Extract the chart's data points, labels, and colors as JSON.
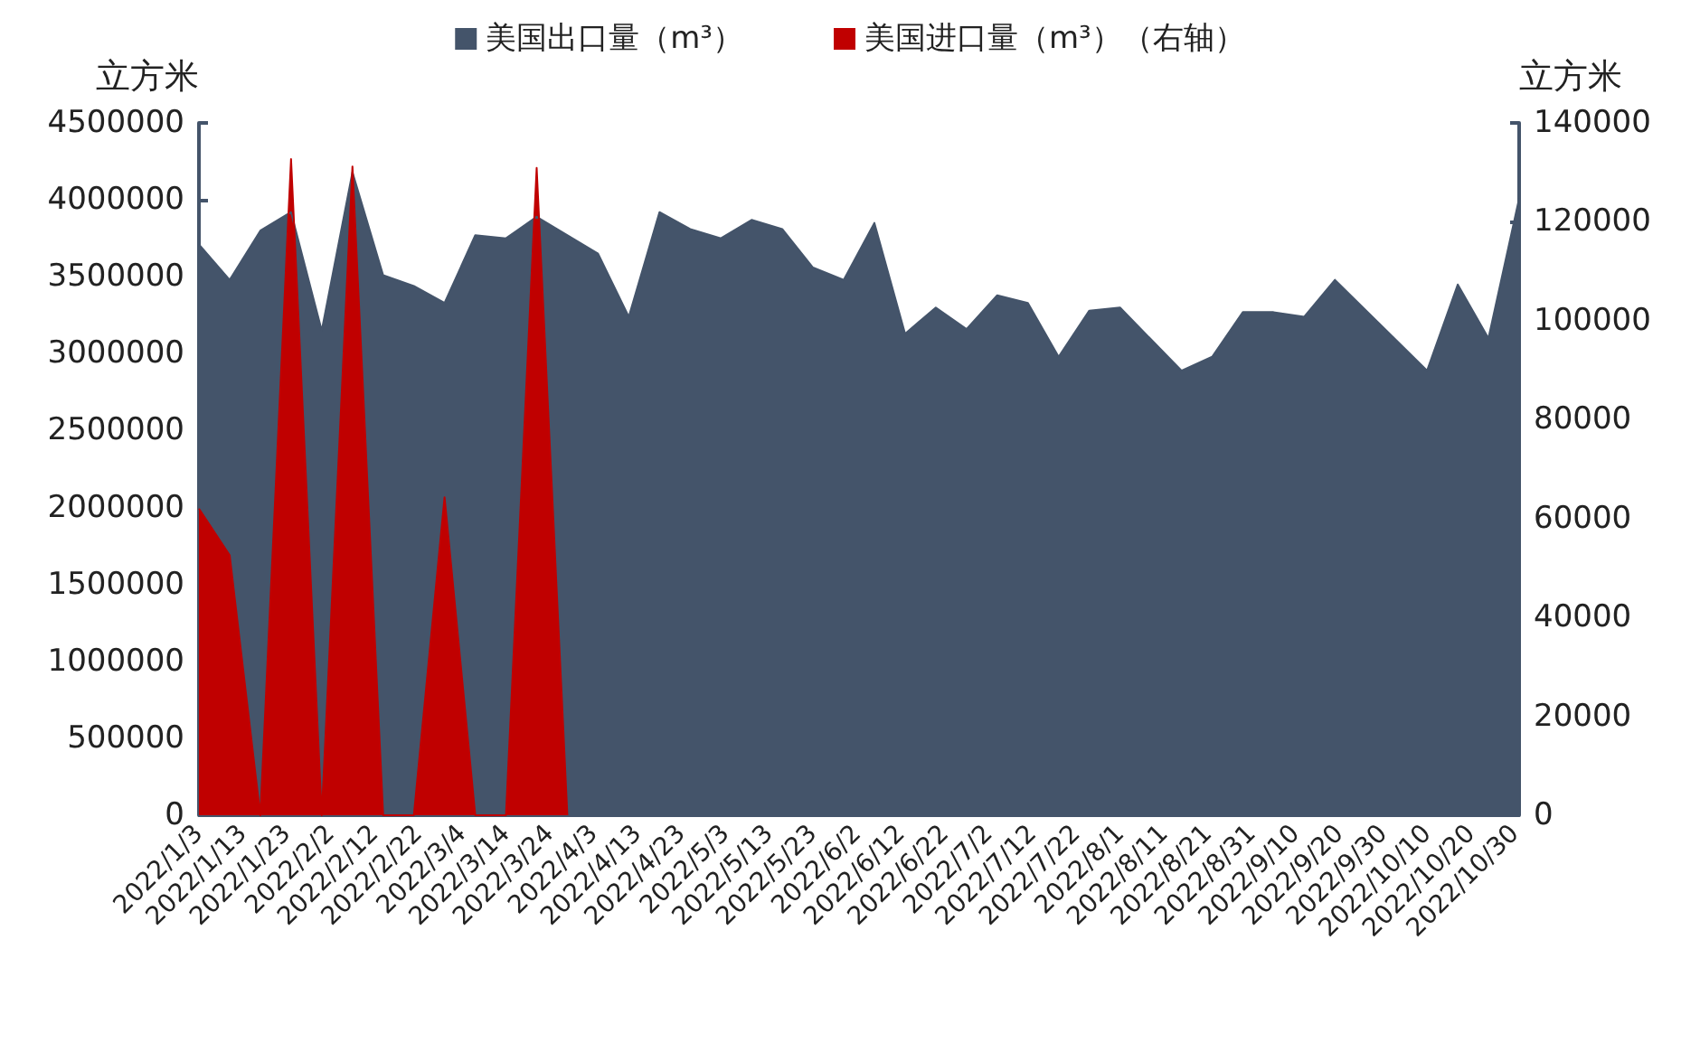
{
  "chart_data": {
    "type": "area",
    "ylabel": "立方米",
    "y2label": "立方米",
    "legend": "top",
    "marker": "none",
    "grid": false,
    "xlim": [
      "2022-01-03",
      "2022-10-31"
    ],
    "xticks": [
      {
        "value": "2022-01-03",
        "label": "2022/1/3"
      },
      {
        "value": "2022-01-13",
        "label": "2022/1/13"
      },
      {
        "value": "2022-01-23",
        "label": "2022/1/23"
      },
      {
        "value": "2022-02-02",
        "label": "2022/2/2"
      },
      {
        "value": "2022-02-12",
        "label": "2022/2/12"
      },
      {
        "value": "2022-02-22",
        "label": "2022/2/22"
      },
      {
        "value": "2022-03-04",
        "label": "2022/3/4"
      },
      {
        "value": "2022-03-14",
        "label": "2022/3/14"
      },
      {
        "value": "2022-03-24",
        "label": "2022/3/24"
      },
      {
        "value": "2022-04-03",
        "label": "2022/4/3"
      },
      {
        "value": "2022-04-13",
        "label": "2022/4/13"
      },
      {
        "value": "2022-04-23",
        "label": "2022/4/23"
      },
      {
        "value": "2022-05-03",
        "label": "2022/5/3"
      },
      {
        "value": "2022-05-13",
        "label": "2022/5/13"
      },
      {
        "value": "2022-05-23",
        "label": "2022/5/23"
      },
      {
        "value": "2022-06-02",
        "label": "2022/6/2"
      },
      {
        "value": "2022-06-12",
        "label": "2022/6/12"
      },
      {
        "value": "2022-06-22",
        "label": "2022/6/22"
      },
      {
        "value": "2022-07-02",
        "label": "2022/7/2"
      },
      {
        "value": "2022-07-12",
        "label": "2022/7/12"
      },
      {
        "value": "2022-07-22",
        "label": "2022/7/22"
      },
      {
        "value": "2022-08-01",
        "label": "2022/8/1"
      },
      {
        "value": "2022-08-11",
        "label": "2022/8/11"
      },
      {
        "value": "2022-08-21",
        "label": "2022/8/21"
      },
      {
        "value": "2022-08-31",
        "label": "2022/8/31"
      },
      {
        "value": "2022-09-10",
        "label": "2022/9/10"
      },
      {
        "value": "2022-09-20",
        "label": "2022/9/20"
      },
      {
        "value": "2022-09-30",
        "label": "2022/9/30"
      },
      {
        "value": "2022-10-10",
        "label": "2022/10/10"
      },
      {
        "value": "2022-10-20",
        "label": "2022/10/20"
      },
      {
        "value": "2022-10-30",
        "label": "2022/10/30"
      }
    ],
    "ylim": [
      0,
      4500000
    ],
    "yticks": [
      0,
      500000,
      1000000,
      1500000,
      2000000,
      2500000,
      3000000,
      3500000,
      4000000,
      4500000
    ],
    "y2lim": [
      0,
      140000
    ],
    "y2ticks": [
      0,
      20000,
      40000,
      60000,
      80000,
      100000,
      120000,
      140000
    ],
    "series": [
      {
        "name": "美国出口量（m³）",
        "color": "#44546a",
        "x": [
          "2022-01-03",
          "2022-01-10",
          "2022-01-17",
          "2022-01-24",
          "2022-01-31",
          "2022-02-07",
          "2022-02-14",
          "2022-02-21",
          "2022-02-28",
          "2022-03-07",
          "2022-03-14",
          "2022-03-21",
          "2022-04-04",
          "2022-04-11",
          "2022-04-18",
          "2022-04-25",
          "2022-05-02",
          "2022-05-09",
          "2022-05-16",
          "2022-05-23",
          "2022-05-30",
          "2022-06-06",
          "2022-06-13",
          "2022-06-20",
          "2022-06-27",
          "2022-07-04",
          "2022-07-11",
          "2022-07-18",
          "2022-07-25",
          "2022-08-01",
          "2022-08-15",
          "2022-08-22",
          "2022-08-29",
          "2022-09-05",
          "2022-09-12",
          "2022-09-19",
          "2022-10-10",
          "2022-10-17",
          "2022-10-24",
          "2022-10-31"
        ],
        "values": [
          3710000,
          3480000,
          3800000,
          3920000,
          3150000,
          4180000,
          3510000,
          3440000,
          3330000,
          3770000,
          3750000,
          3890000,
          3650000,
          3240000,
          3920000,
          3810000,
          3750000,
          3870000,
          3810000,
          3560000,
          3480000,
          3850000,
          3130000,
          3300000,
          3160000,
          3380000,
          3330000,
          2980000,
          3280000,
          3300000,
          2890000,
          2980000,
          3270000,
          3270000,
          3240000,
          3480000,
          2890000,
          3450000,
          3100000,
          4010000
        ]
      },
      {
        "name": "美国进口量（m³）（右轴）",
        "color": "#c00000",
        "axis": "y2",
        "x": [
          "2022-01-03",
          "2022-01-10",
          "2022-01-17",
          "2022-01-24",
          "2022-01-31",
          "2022-02-07",
          "2022-02-14",
          "2022-02-21",
          "2022-02-28",
          "2022-03-07",
          "2022-03-14",
          "2022-03-21",
          "2022-03-28"
        ],
        "values": [
          62000,
          52600,
          0,
          132700,
          0,
          131200,
          0,
          0,
          64300,
          0,
          0,
          130900,
          0
        ]
      }
    ]
  }
}
